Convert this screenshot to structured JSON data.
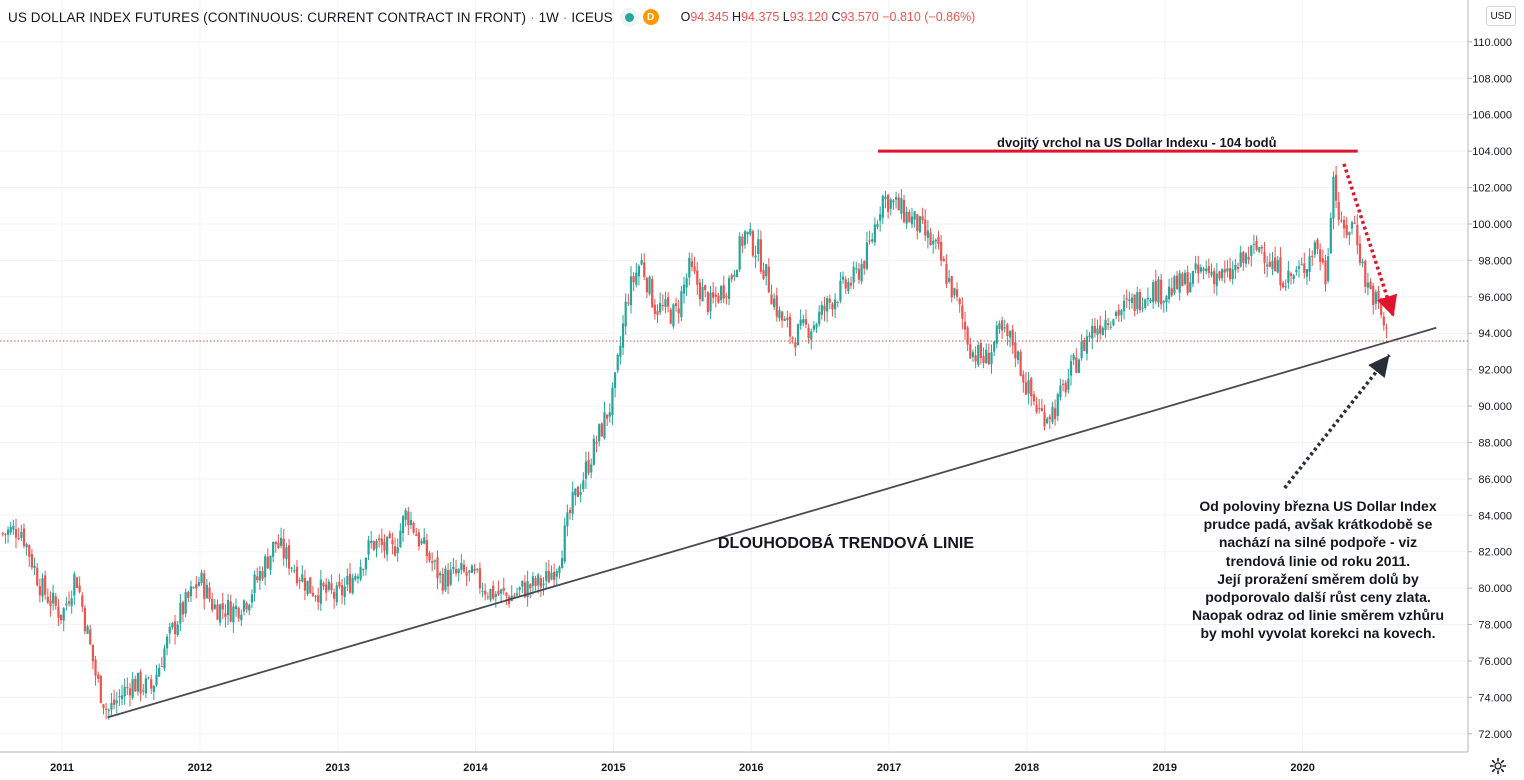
{
  "header": {
    "title": "US DOLLAR INDEX FUTURES (CONTINUOUS: CURRENT CONTRACT IN FRONT)",
    "interval": "1W",
    "exchange": "ICEUS",
    "status_badge": "D",
    "ohlc": {
      "o_label": "O",
      "o": "94.345",
      "h_label": "H",
      "h": "94.375",
      "l_label": "L",
      "l": "93.120",
      "c_label": "C",
      "c": "93.570",
      "change": "−0.810 (−0.86%)"
    }
  },
  "currency_badge": "USD",
  "colors": {
    "up": "#26a69a",
    "down": "#ef5350",
    "text": "#131722",
    "grid": "#f0f3fa",
    "trendline": "#4a4a56",
    "top_line": "#e0142c",
    "price_line": "#c8562e"
  },
  "annotations": {
    "top_label": "dvojitý vrchol na US Dollar Indexu - 104 bodů",
    "trend_label": "DLOUHODOBÁ TRENDOVÁ LINIE",
    "note_lines": [
      "Od poloviny března US Dollar Index",
      "prudce padá, avšak krátkodobě se",
      "nachází na silné podpoře - viz",
      "trendová linie od roku 2011.",
      "Její proražení směrem dolů by",
      "podporovalo další růst ceny zlata.",
      "Naopak odraz od linie směrem vzhůru",
      "by mohl vyvolat korekci na kovech."
    ],
    "resistance_level": 104.0,
    "trendline": {
      "start": [
        2011.33,
        72.9
      ],
      "end": [
        2020.97,
        94.3
      ]
    }
  },
  "chart_data": {
    "type": "candlestick",
    "timeframe": "1W",
    "x_ticks": [
      "2011",
      "2012",
      "2013",
      "2014",
      "2015",
      "2016",
      "2017",
      "2018",
      "2019",
      "2020"
    ],
    "y_ticks": [
      "72.000",
      "74.000",
      "76.000",
      "78.000",
      "80.000",
      "82.000",
      "84.000",
      "86.000",
      "88.000",
      "90.000",
      "92.000",
      "94.000",
      "96.000",
      "98.000",
      "100.000",
      "102.000",
      "104.000",
      "106.000",
      "108.000",
      "110.000"
    ],
    "xlim": [
      2010.55,
      2021.2
    ],
    "ylim": [
      71.0,
      112.3
    ],
    "last_price": 93.57,
    "close_path": [
      [
        2010.57,
        83.0
      ],
      [
        2010.7,
        83.3
      ],
      [
        2010.85,
        80.0
      ],
      [
        2011.0,
        78.5
      ],
      [
        2011.1,
        80.8
      ],
      [
        2011.25,
        75.0
      ],
      [
        2011.33,
        73.2
      ],
      [
        2011.5,
        74.8
      ],
      [
        2011.65,
        74.5
      ],
      [
        2011.75,
        76.8
      ],
      [
        2011.85,
        78.5
      ],
      [
        2012.0,
        80.5
      ],
      [
        2012.1,
        79.0
      ],
      [
        2012.25,
        78.8
      ],
      [
        2012.35,
        79.5
      ],
      [
        2012.45,
        81.0
      ],
      [
        2012.55,
        82.5
      ],
      [
        2012.65,
        81.5
      ],
      [
        2012.8,
        80.0
      ],
      [
        2012.9,
        79.8
      ],
      [
        2013.0,
        79.5
      ],
      [
        2013.1,
        80.5
      ],
      [
        2013.25,
        82.5
      ],
      [
        2013.4,
        82.0
      ],
      [
        2013.5,
        84.2
      ],
      [
        2013.6,
        82.5
      ],
      [
        2013.75,
        80.5
      ],
      [
        2013.9,
        80.8
      ],
      [
        2014.0,
        80.5
      ],
      [
        2014.1,
        79.8
      ],
      [
        2014.25,
        79.5
      ],
      [
        2014.35,
        80.0
      ],
      [
        2014.5,
        80.3
      ],
      [
        2014.6,
        81.5
      ],
      [
        2014.7,
        84.5
      ],
      [
        2014.85,
        87.5
      ],
      [
        2015.0,
        90.5
      ],
      [
        2015.1,
        96.0
      ],
      [
        2015.2,
        98.0
      ],
      [
        2015.3,
        95.5
      ],
      [
        2015.45,
        95.0
      ],
      [
        2015.55,
        97.5
      ],
      [
        2015.7,
        95.5
      ],
      [
        2015.85,
        97.0
      ],
      [
        2015.95,
        99.5
      ],
      [
        2016.05,
        98.5
      ],
      [
        2016.2,
        95.0
      ],
      [
        2016.3,
        93.8
      ],
      [
        2016.45,
        94.5
      ],
      [
        2016.6,
        96.0
      ],
      [
        2016.75,
        97.0
      ],
      [
        2016.85,
        98.5
      ],
      [
        2016.95,
        101.5
      ],
      [
        2017.05,
        101.0
      ],
      [
        2017.2,
        100.0
      ],
      [
        2017.35,
        98.5
      ],
      [
        2017.5,
        95.5
      ],
      [
        2017.6,
        93.0
      ],
      [
        2017.7,
        92.5
      ],
      [
        2017.8,
        94.0
      ],
      [
        2017.9,
        93.5
      ],
      [
        2018.0,
        91.0
      ],
      [
        2018.1,
        89.5
      ],
      [
        2018.2,
        89.8
      ],
      [
        2018.3,
        91.5
      ],
      [
        2018.45,
        94.0
      ],
      [
        2018.6,
        95.0
      ],
      [
        2018.75,
        95.5
      ],
      [
        2018.9,
        96.5
      ],
      [
        2019.0,
        96.2
      ],
      [
        2019.15,
        96.8
      ],
      [
        2019.3,
        97.5
      ],
      [
        2019.45,
        97.0
      ],
      [
        2019.6,
        98.2
      ],
      [
        2019.7,
        98.8
      ],
      [
        2019.8,
        97.5
      ],
      [
        2019.9,
        97.0
      ],
      [
        2020.0,
        97.5
      ],
      [
        2020.1,
        99.0
      ],
      [
        2020.17,
        97.0
      ],
      [
        2020.22,
        102.8
      ],
      [
        2020.28,
        99.5
      ],
      [
        2020.38,
        100.0
      ],
      [
        2020.45,
        97.0
      ],
      [
        2020.55,
        95.5
      ],
      [
        2020.62,
        93.57
      ]
    ]
  }
}
